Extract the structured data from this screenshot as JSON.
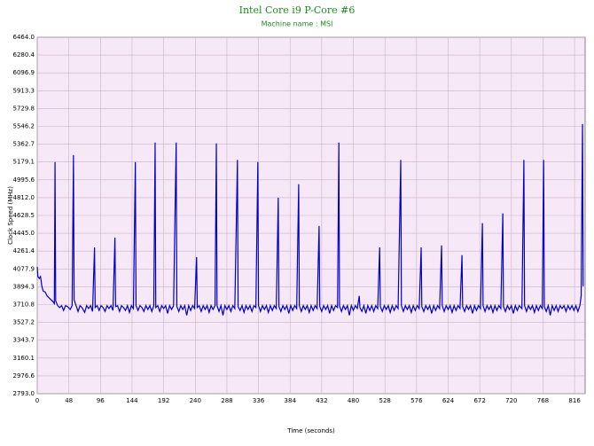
{
  "chart_data": {
    "type": "line",
    "title": "Intel Core i9 P-Core #6",
    "subtitle": "Machine name : MSI",
    "xlabel": "Time (seconds)",
    "ylabel": "Clock Speed (MHz)",
    "grid": true,
    "xlim": [
      0,
      832
    ],
    "ylim": [
      2793,
      6464
    ],
    "xticks": [
      0,
      48,
      96,
      144,
      192,
      240,
      288,
      336,
      384,
      432,
      480,
      528,
      576,
      624,
      672,
      720,
      768,
      816
    ],
    "yticks": [
      {
        "value": 2793,
        "label": "2793.0"
      },
      2976.6,
      3160.1,
      3343.7,
      3527.2,
      3710.8,
      3894.3,
      4077.9,
      4261.4,
      {
        "value": 4445,
        "label": "4445.0"
      },
      4628.5,
      {
        "value": 4812,
        "label": "4812.0"
      },
      4995.6,
      5179.1,
      5362.7,
      5546.2,
      5729.8,
      5913.3,
      6096.9,
      6280.4,
      {
        "value": 6464,
        "label": "6464.0"
      }
    ],
    "series": [
      {
        "color": "#0000c8",
        "x": [
          0,
          1,
          3,
          5,
          7,
          9,
          12,
          15,
          18,
          21,
          24,
          26,
          27,
          28,
          31,
          34,
          37,
          40,
          43,
          46,
          50,
          53,
          55,
          56,
          59,
          62,
          65,
          68,
          72,
          75,
          78,
          81,
          84,
          87,
          88,
          91,
          94,
          97,
          100,
          103,
          106,
          109,
          112,
          115,
          118,
          119,
          122,
          125,
          128,
          131,
          134,
          137,
          140,
          143,
          146,
          149,
          150,
          153,
          156,
          159,
          162,
          165,
          168,
          171,
          174,
          177,
          179,
          180,
          183,
          186,
          189,
          192,
          195,
          198,
          201,
          204,
          207,
          211,
          212,
          215,
          218,
          221,
          224,
          227,
          230,
          233,
          236,
          239,
          242,
          243,
          246,
          249,
          252,
          255,
          258,
          261,
          264,
          267,
          270,
          272,
          273,
          276,
          279,
          282,
          285,
          288,
          291,
          294,
          297,
          300,
          304,
          305,
          308,
          311,
          314,
          317,
          320,
          323,
          326,
          329,
          332,
          335,
          336,
          339,
          342,
          345,
          348,
          351,
          354,
          357,
          360,
          363,
          366,
          367,
          370,
          373,
          376,
          379,
          382,
          385,
          388,
          391,
          394,
          397,
          398,
          401,
          404,
          407,
          410,
          413,
          416,
          419,
          422,
          425,
          428,
          429,
          432,
          435,
          438,
          441,
          444,
          447,
          450,
          453,
          456,
          458,
          459,
          462,
          465,
          468,
          471,
          474,
          477,
          480,
          483,
          486,
          489,
          490,
          493,
          496,
          499,
          502,
          505,
          508,
          511,
          514,
          517,
          520,
          521,
          524,
          527,
          530,
          533,
          536,
          539,
          542,
          545,
          548,
          552,
          553,
          556,
          559,
          562,
          565,
          568,
          571,
          574,
          577,
          580,
          583,
          584,
          587,
          590,
          593,
          596,
          599,
          602,
          605,
          608,
          611,
          614,
          615,
          618,
          621,
          624,
          627,
          630,
          633,
          636,
          639,
          642,
          645,
          646,
          649,
          652,
          655,
          658,
          661,
          664,
          667,
          670,
          673,
          676,
          677,
          680,
          683,
          686,
          689,
          692,
          695,
          698,
          701,
          704,
          707,
          708,
          711,
          714,
          717,
          720,
          723,
          726,
          729,
          732,
          736,
          739,
          740,
          743,
          746,
          749,
          752,
          755,
          758,
          761,
          764,
          767,
          769,
          770,
          773,
          776,
          779,
          782,
          785,
          788,
          791,
          794,
          797,
          800,
          803,
          806,
          809,
          812,
          815,
          818,
          821,
          824,
          826,
          828,
          829
        ],
        "values": [
          4100,
          4000,
          3980,
          4000,
          3900,
          3850,
          3840,
          3800,
          3780,
          3760,
          3740,
          3720,
          5179,
          3750,
          3700,
          3680,
          3700,
          3650,
          3700,
          3690,
          3660,
          3700,
          5250,
          3760,
          3700,
          3640,
          3700,
          3680,
          3630,
          3700,
          3670,
          3700,
          3640,
          4300,
          3680,
          3700,
          3650,
          3700,
          3680,
          3640,
          3700,
          3670,
          3700,
          3650,
          4400,
          3690,
          3700,
          3640,
          3700,
          3680,
          3650,
          3700,
          3630,
          3700,
          3670,
          5179,
          3700,
          3650,
          3700,
          3680,
          3640,
          3700,
          3660,
          3700,
          3640,
          3700,
          5380,
          3680,
          3700,
          3640,
          3700,
          3670,
          3700,
          3620,
          3700,
          3660,
          3700,
          5380,
          3690,
          3640,
          3700,
          3660,
          3700,
          3600,
          3700,
          3650,
          3700,
          3670,
          4200,
          3680,
          3700,
          3640,
          3700,
          3660,
          3700,
          3630,
          3700,
          3660,
          3700,
          5370,
          3700,
          3640,
          3700,
          3600,
          3700,
          3660,
          3700,
          3640,
          3700,
          3670,
          5200,
          3690,
          3650,
          3700,
          3630,
          3700,
          3660,
          3700,
          3640,
          3700,
          3680,
          5179,
          3700,
          3640,
          3700,
          3660,
          3700,
          3630,
          3700,
          3650,
          3700,
          3670,
          4812,
          3690,
          3640,
          3700,
          3660,
          3700,
          3620,
          3700,
          3650,
          3700,
          3670,
          4950,
          3700,
          3640,
          3700,
          3660,
          3700,
          3630,
          3700,
          3650,
          3700,
          3670,
          4520,
          3690,
          3640,
          3700,
          3660,
          3700,
          3620,
          3700,
          3650,
          3700,
          3680,
          5380,
          3700,
          3640,
          3700,
          3660,
          3700,
          3600,
          3700,
          3650,
          3700,
          3670,
          3800,
          3680,
          3640,
          3700,
          3620,
          3700,
          3650,
          3700,
          3640,
          3700,
          3670,
          4300,
          3690,
          3640,
          3700,
          3660,
          3700,
          3630,
          3700,
          3650,
          3700,
          3670,
          5200,
          3700,
          3640,
          3700,
          3660,
          3700,
          3630,
          3700,
          3650,
          3700,
          3670,
          4300,
          3690,
          3640,
          3700,
          3660,
          3700,
          3620,
          3700,
          3650,
          3700,
          3670,
          4320,
          3700,
          3640,
          3700,
          3660,
          3700,
          3630,
          3700,
          3650,
          3700,
          3670,
          4220,
          3690,
          3640,
          3700,
          3660,
          3700,
          3620,
          3700,
          3650,
          3700,
          3670,
          4550,
          3700,
          3640,
          3700,
          3660,
          3700,
          3630,
          3700,
          3650,
          3700,
          3670,
          4650,
          3690,
          3640,
          3700,
          3660,
          3700,
          3620,
          3700,
          3650,
          3700,
          3670,
          5200,
          3700,
          3640,
          3700,
          3660,
          3700,
          3630,
          3700,
          3650,
          3700,
          3670,
          5200,
          3690,
          3640,
          3700,
          3600,
          3700,
          3650,
          3700,
          3640,
          3700,
          3670,
          3700,
          3640,
          3700,
          3660,
          3700,
          3650,
          3700,
          3640,
          3700,
          3800,
          5570,
          3900
        ]
      }
    ]
  }
}
